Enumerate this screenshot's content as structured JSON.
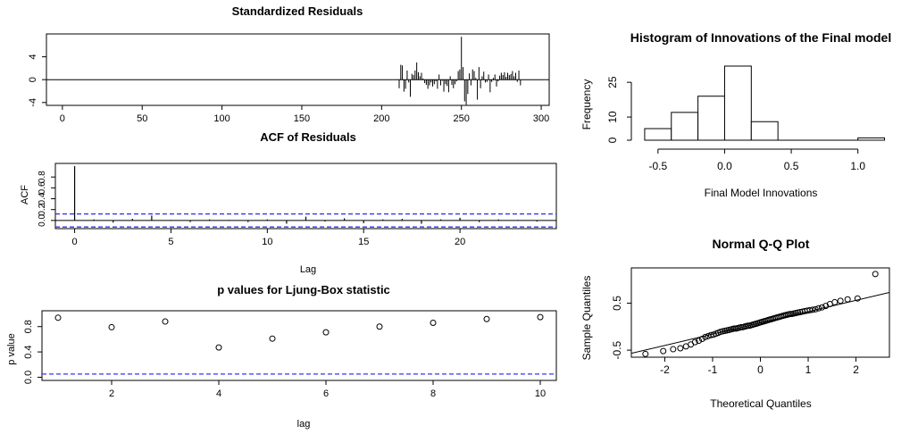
{
  "chart_data": [
    {
      "type": "line",
      "title": "Standardized Residuals",
      "xlabel": "",
      "ylabel": "",
      "xlim": [
        -10,
        305
      ],
      "ylim": [
        -4.5,
        8
      ],
      "xticks": [
        "0",
        "50",
        "100",
        "150",
        "200",
        "250",
        "300"
      ],
      "yticks": [
        "-4",
        "0",
        "4"
      ],
      "x_start": 211,
      "values": [
        -1.5,
        2.6,
        2.5,
        -2.1,
        -1.6,
        1.6,
        -0.5,
        -3.0,
        1.0,
        0.8,
        1.6,
        3.0,
        1.3,
        0.6,
        1.2,
        0.2,
        -0.6,
        -0.9,
        -1.6,
        -1.0,
        -0.5,
        -1.2,
        -0.8,
        -0.3,
        -1.6,
        0.9,
        -1.0,
        -0.2,
        -2.1,
        -0.8,
        -1.1,
        -2.2,
        0.6,
        -0.9,
        -1.5,
        -0.8,
        -0.3,
        1.5,
        1.8,
        7.5,
        2.2,
        -3.8,
        -4.4,
        -2.5,
        1.1,
        -1.0,
        1.8,
        1.5,
        0.3,
        -3.5,
        2.2,
        -1.5,
        0.6,
        1.4,
        -0.5,
        -0.4,
        0.9,
        -2.2,
        -0.4,
        0.3,
        0.9,
        -1.2,
        -0.3,
        0.7,
        1.2,
        0.8,
        1.3,
        0.5,
        1.2,
        0.8,
        1.0,
        1.5,
        0.6,
        1.2,
        -0.4,
        1.6,
        -1.0
      ],
      "baseline": 0
    },
    {
      "type": "bar",
      "title": "ACF of Residuals",
      "xlabel": "Lag",
      "ylabel": "ACF",
      "xlim": [
        -1,
        25
      ],
      "ylim": [
        -0.15,
        1.05
      ],
      "xticks": [
        "0",
        "5",
        "10",
        "15",
        "20"
      ],
      "yticks": [
        "0.0",
        "0.2",
        "0.4",
        "0.6",
        "0.8"
      ],
      "lags": [
        0,
        1,
        2,
        3,
        4,
        5,
        6,
        7,
        8,
        9,
        10,
        11,
        12,
        13,
        14,
        15,
        16,
        17,
        18,
        19,
        20,
        21,
        22,
        23,
        24
      ],
      "values": [
        1.0,
        0.02,
        -0.04,
        0.03,
        0.09,
        0.01,
        -0.03,
        0.02,
        0.01,
        -0.03,
        0.02,
        -0.06,
        0.07,
        -0.02,
        0.04,
        -0.05,
        0.02,
        0.03,
        -0.06,
        0.02,
        0.05,
        -0.03,
        0.02,
        0.01,
        -0.02
      ],
      "conf_limits": [
        0.12,
        -0.12
      ],
      "conf_color": "#3333ff"
    },
    {
      "type": "scatter",
      "title": "p values for Ljung-Box statistic",
      "xlabel": "lag",
      "ylabel": "p value",
      "xlim": [
        0.7,
        10.3
      ],
      "ylim": [
        -0.05,
        1.05
      ],
      "xticks": [
        "2",
        "4",
        "6",
        "8",
        "10"
      ],
      "yticks": [
        "0.0",
        "0.4",
        "0.8"
      ],
      "x": [
        1,
        2,
        3,
        4,
        5,
        6,
        7,
        8,
        9,
        10
      ],
      "y": [
        0.94,
        0.79,
        0.88,
        0.47,
        0.61,
        0.71,
        0.8,
        0.86,
        0.92,
        0.95
      ],
      "hline": 0.05,
      "hline_color": "#3333ff"
    },
    {
      "type": "bar",
      "title": "Histogram of Innovations of the Final model",
      "xlabel": "Final Model Innovations",
      "ylabel": "Frequency",
      "xlim": [
        -0.7,
        1.25
      ],
      "ylim": [
        0,
        32
      ],
      "xticks": [
        "-0.5",
        "0.0",
        "0.5",
        "1.0"
      ],
      "yticks": [
        "0",
        "10",
        "25"
      ],
      "bin_edges": [
        -0.6,
        -0.4,
        -0.2,
        0.0,
        0.2,
        0.4,
        0.6,
        0.8,
        1.0,
        1.2
      ],
      "counts": [
        5,
        12,
        19,
        32,
        8,
        0,
        0,
        0,
        1
      ]
    },
    {
      "type": "scatter",
      "title": "Normal Q-Q Plot",
      "xlabel": "Theoretical Quantiles",
      "ylabel": "Sample Quantiles",
      "xlim": [
        -2.7,
        2.7
      ],
      "ylim": [
        -0.65,
        1.25
      ],
      "xticks": [
        "-2",
        "-1",
        "0",
        "1",
        "2"
      ],
      "yticks": [
        "-0.5",
        "0.5"
      ],
      "n_points": 77,
      "sorted_sample": [
        -0.58,
        -0.52,
        -0.48,
        -0.46,
        -0.42,
        -0.38,
        -0.33,
        -0.3,
        -0.26,
        -0.22,
        -0.2,
        -0.18,
        -0.17,
        -0.15,
        -0.13,
        -0.11,
        -0.1,
        -0.09,
        -0.08,
        -0.07,
        -0.06,
        -0.05,
        -0.04,
        -0.04,
        -0.03,
        -0.02,
        -0.01,
        -0.01,
        0.0,
        0.01,
        0.02,
        0.02,
        0.03,
        0.04,
        0.05,
        0.06,
        0.07,
        0.08,
        0.09,
        0.1,
        0.11,
        0.12,
        0.13,
        0.14,
        0.15,
        0.16,
        0.17,
        0.18,
        0.19,
        0.2,
        0.21,
        0.22,
        0.23,
        0.24,
        0.25,
        0.26,
        0.27,
        0.27,
        0.28,
        0.29,
        0.3,
        0.31,
        0.32,
        0.33,
        0.34,
        0.35,
        0.36,
        0.37,
        0.39,
        0.41,
        0.44,
        0.48,
        0.52,
        0.55,
        0.58,
        0.6,
        1.12
      ],
      "qq_line": {
        "intercept": 0.08,
        "slope": 0.24
      }
    }
  ]
}
